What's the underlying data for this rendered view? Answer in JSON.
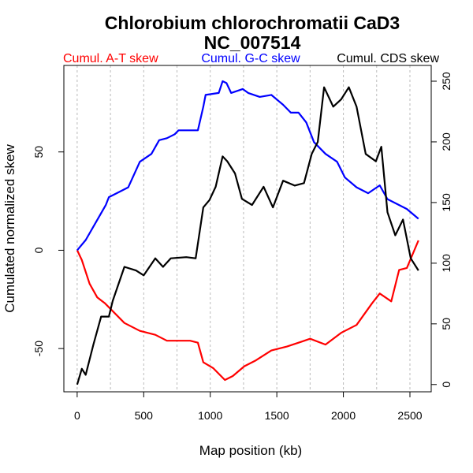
{
  "chart_data": {
    "type": "line",
    "title": "Chlorobium chlorochromatii CaD3",
    "subtitle": "NC_007514",
    "xlabel": "Map position (kb)",
    "ylabel": "Cumulated normalized skew",
    "xlim": [
      -100,
      2660
    ],
    "ylim": [
      -72,
      94
    ],
    "y2lim": [
      -6,
      263
    ],
    "x_ticks": [
      0,
      500,
      1000,
      1500,
      2000,
      2500
    ],
    "y_ticks": [
      -50,
      0,
      50
    ],
    "y2_ticks": [
      0,
      50,
      100,
      150,
      200,
      250
    ],
    "grid": "vertical dotted every 250 kb",
    "legend_placement": "top",
    "series": [
      {
        "name": "Cumul. A-T skew",
        "color": "#ff0000",
        "axis": "left",
        "x": [
          0,
          35,
          93,
          151,
          209,
          267,
          355,
          471,
          587,
          674,
          849,
          907,
          948,
          1023,
          1110,
          1169,
          1256,
          1343,
          1459,
          1576,
          1663,
          1750,
          1866,
          1983,
          2099,
          2215,
          2273,
          2360,
          2419,
          2477,
          2564
        ],
        "y": [
          0,
          -5,
          -17,
          -24,
          -27,
          -31,
          -37,
          -41,
          -43,
          -46,
          -46,
          -47,
          -57,
          -60,
          -66,
          -64,
          -59,
          -56,
          -51,
          -49,
          -47,
          -45,
          -48,
          -42,
          -38,
          -27,
          -22,
          -26,
          -10,
          -9,
          5
        ]
      },
      {
        "name": "Cumul. G-C skew",
        "color": "#0000ff",
        "axis": "left",
        "x": [
          0,
          64,
          215,
          238,
          297,
          384,
          471,
          558,
          616,
          674,
          733,
          762,
          907,
          948,
          965,
          1064,
          1093,
          1122,
          1157,
          1244,
          1285,
          1372,
          1459,
          1547,
          1605,
          1663,
          1721,
          1779,
          1866,
          1953,
          2012,
          2099,
          2186,
          2273,
          2331,
          2419,
          2477,
          2564
        ],
        "y": [
          0,
          5.2,
          23,
          27,
          29,
          32,
          45,
          49,
          56,
          57,
          59,
          61,
          61,
          73,
          79,
          80,
          86,
          85,
          80,
          82,
          80,
          78,
          79,
          74,
          70,
          70,
          65,
          55,
          49,
          45,
          37,
          32,
          29,
          33,
          26,
          23,
          21,
          16
        ]
      },
      {
        "name": "Cumul. CDS skew",
        "color": "#000000",
        "axis": "right",
        "x": [
          0,
          35,
          64,
          122,
          180,
          238,
          267,
          355,
          442,
          500,
          587,
          645,
          703,
          820,
          890,
          948,
          994,
          1041,
          1093,
          1128,
          1186,
          1238,
          1314,
          1401,
          1471,
          1547,
          1634,
          1704,
          1762,
          1808,
          1855,
          1924,
          1983,
          2041,
          2099,
          2168,
          2244,
          2285,
          2331,
          2390,
          2448,
          2506,
          2564
        ],
        "y": [
          0,
          13,
          8,
          33,
          56,
          56,
          69,
          97,
          94,
          90,
          104,
          97,
          104,
          105,
          104,
          146,
          152,
          163,
          188,
          184,
          174,
          153,
          148,
          163,
          146,
          168,
          164,
          166,
          190,
          200,
          245,
          229,
          235,
          245,
          229,
          190,
          184,
          196,
          142,
          123,
          136,
          104,
          94
        ]
      }
    ]
  }
}
